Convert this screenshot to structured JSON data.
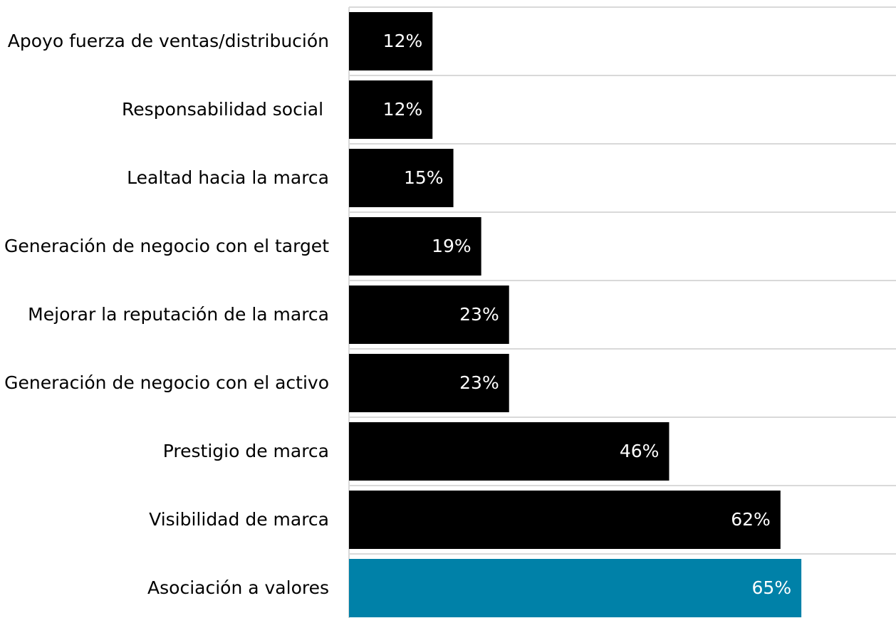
{
  "chart_data": {
    "type": "barh",
    "categories": [
      "Apoyo fuerza de ventas/distribución",
      "Responsabilidad social ",
      "Lealtad hacia la marca",
      "Generación de negocio con el target",
      "Mejorar la reputación de la marca",
      "Generación de negocio con el activo",
      "Prestigio de marca",
      "Visibilidad de marca",
      "Asociación a valores"
    ],
    "values": [
      12,
      12,
      15,
      19,
      23,
      23,
      46,
      62,
      65
    ],
    "value_labels": [
      "12%",
      "12%",
      "15%",
      "19%",
      "23%",
      "23%",
      "46%",
      "62%",
      "65%"
    ],
    "colors": [
      "#000000",
      "#000000",
      "#000000",
      "#000000",
      "#000000",
      "#000000",
      "#000000",
      "#000000",
      "#0081a8"
    ],
    "xlim": [
      0,
      78.6
    ]
  }
}
